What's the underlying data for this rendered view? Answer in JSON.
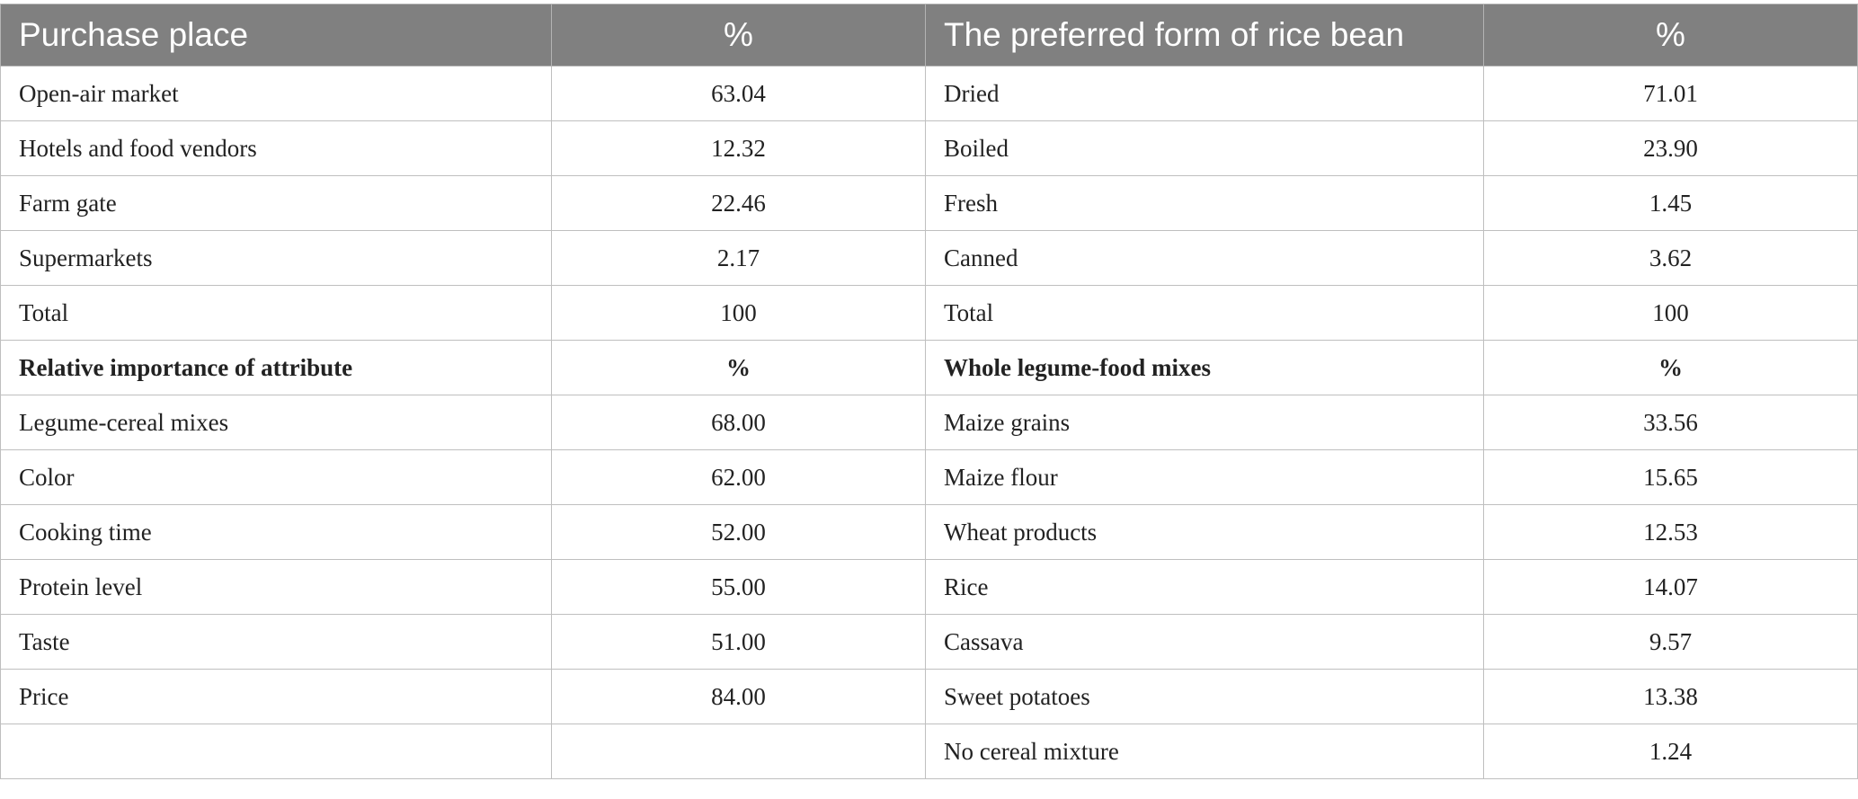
{
  "header": {
    "col1": "Purchase place",
    "col2": "%",
    "col3": "The preferred form of rice bean",
    "col4": "%"
  },
  "rows": [
    {
      "a": "Open-air market",
      "b": "63.04",
      "c": "Dried",
      "d": "71.01"
    },
    {
      "a": "Hotels and food vendors",
      "b": "12.32",
      "c": "Boiled",
      "d": "23.90"
    },
    {
      "a": "Farm gate",
      "b": "22.46",
      "c": "Fresh",
      "d": "1.45"
    },
    {
      "a": "Supermarkets",
      "b": "2.17",
      "c": "Canned",
      "d": "3.62"
    },
    {
      "a": "Total",
      "b": "100",
      "c": "Total",
      "d": "100"
    },
    {
      "a": "Relative importance of attribute",
      "b": "%",
      "c": "Whole legume-food mixes",
      "d": "%"
    },
    {
      "a": "Legume-cereal mixes",
      "b": "68.00",
      "c": "Maize grains",
      "d": "33.56"
    },
    {
      "a": "Color",
      "b": "62.00",
      "c": "Maize flour",
      "d": "15.65"
    },
    {
      "a": "Cooking time",
      "b": "52.00",
      "c": "Wheat products",
      "d": "12.53"
    },
    {
      "a": "Protein level",
      "b": "55.00",
      "c": "Rice",
      "d": "14.07"
    },
    {
      "a": "Taste",
      "b": "51.00",
      "c": "Cassava",
      "d": "9.57"
    },
    {
      "a": "Price",
      "b": "84.00",
      "c": "Sweet potatoes",
      "d": "13.38"
    },
    {
      "a": "",
      "b": "",
      "c": "No cereal mixture",
      "d": "1.24"
    }
  ]
}
